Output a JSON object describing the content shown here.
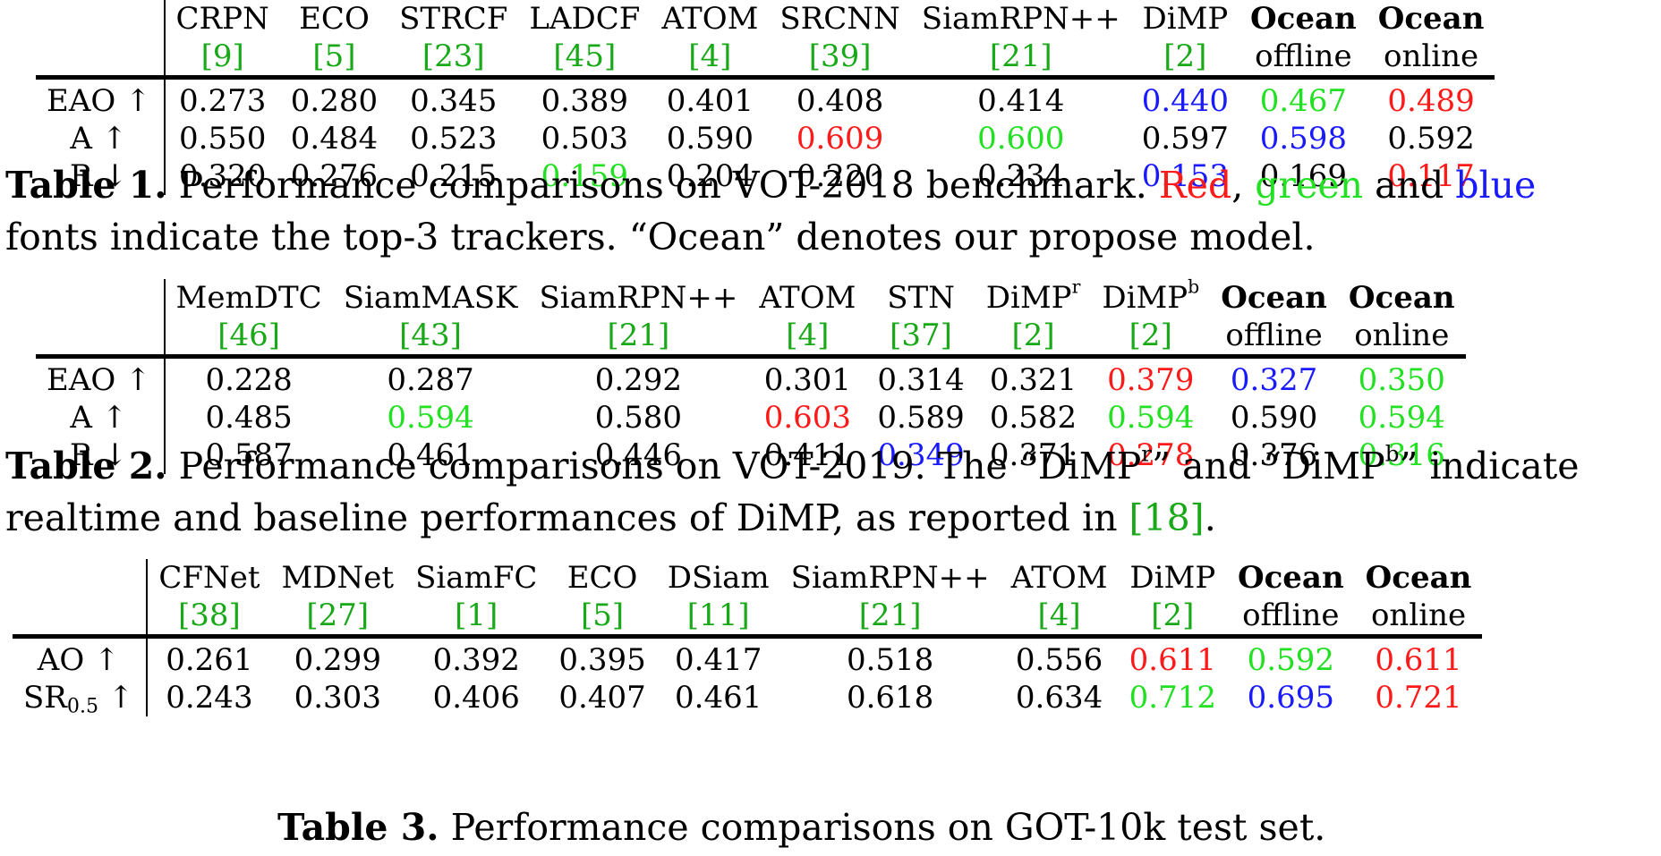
{
  "table1": {
    "columns": [
      {
        "name": "CRPN",
        "sub": "[9]",
        "bold": false
      },
      {
        "name": "ECO",
        "sub": "[5]",
        "bold": false
      },
      {
        "name": "STRCF",
        "sub": "[23]",
        "bold": false
      },
      {
        "name": "LADCF",
        "sub": "[45]",
        "bold": false
      },
      {
        "name": "ATOM",
        "sub": "[4]",
        "bold": false
      },
      {
        "name": "SRCNN",
        "sub": "[39]",
        "bold": false
      },
      {
        "name": "SiamRPN++",
        "sub": "[21]",
        "bold": false
      },
      {
        "name": "DiMP",
        "sub": "[2]",
        "bold": false
      },
      {
        "name": "Ocean",
        "sub": "offline",
        "bold": true
      },
      {
        "name": "Ocean",
        "sub": "online",
        "bold": true
      }
    ],
    "rows": [
      {
        "label": "EAO ↑",
        "values": [
          "0.273",
          "0.280",
          "0.345",
          "0.389",
          "0.401",
          "0.408",
          "0.414",
          "0.440",
          "0.467",
          "0.489"
        ],
        "styles": [
          "",
          "",
          "",
          "",
          "",
          "",
          "",
          "blue",
          "green",
          "red"
        ]
      },
      {
        "label": "A ↑",
        "values": [
          "0.550",
          "0.484",
          "0.523",
          "0.503",
          "0.590",
          "0.609",
          "0.600",
          "0.597",
          "0.598",
          "0.592"
        ],
        "styles": [
          "",
          "",
          "",
          "",
          "",
          "red",
          "green",
          "",
          "blue",
          ""
        ]
      },
      {
        "label": "R ↓",
        "values": [
          "0.320",
          "0.276",
          "0.215",
          "0.159",
          "0.204",
          "0.220",
          "0.234",
          "0.153",
          "0.169",
          "0.117"
        ],
        "styles": [
          "",
          "",
          "",
          "green",
          "",
          "",
          "",
          "blue",
          "",
          "red"
        ]
      }
    ],
    "caption": {
      "label": "Table 1.",
      "text1": " Performance comparisons on VOT-2018 benchmark. ",
      "red": "Red",
      "comma": ", ",
      "green": "green",
      "and": " and ",
      "blue": "blue",
      "line2": "fonts indicate the top-3 trackers. “Ocean” denotes our propose model."
    }
  },
  "table2": {
    "columns": [
      {
        "name": "MemDTC",
        "sup": "",
        "sub": "[46]",
        "bold": false
      },
      {
        "name": "SiamMASK",
        "sup": "",
        "sub": "[43]",
        "bold": false
      },
      {
        "name": "SiamRPN++",
        "sup": "",
        "sub": "[21]",
        "bold": false
      },
      {
        "name": "ATOM",
        "sup": "",
        "sub": "[4]",
        "bold": false
      },
      {
        "name": "STN",
        "sup": "",
        "sub": "[37]",
        "bold": false
      },
      {
        "name": "DiMP",
        "sup": "r",
        "sub": "[2]",
        "bold": false
      },
      {
        "name": "DiMP",
        "sup": "b",
        "sub": "[2]",
        "bold": false
      },
      {
        "name": "Ocean",
        "sup": "",
        "sub": "offline",
        "bold": true
      },
      {
        "name": "Ocean",
        "sup": "",
        "sub": "online",
        "bold": true
      }
    ],
    "rows": [
      {
        "label": "EAO ↑",
        "values": [
          "0.228",
          "0.287",
          "0.292",
          "0.301",
          "0.314",
          "0.321",
          "0.379",
          "0.327",
          "0.350"
        ],
        "styles": [
          "",
          "",
          "",
          "",
          "",
          "",
          "red",
          "blue",
          "green"
        ]
      },
      {
        "label": "A ↑",
        "values": [
          "0.485",
          "0.594",
          "0.580",
          "0.603",
          "0.589",
          "0.582",
          "0.594",
          "0.590",
          "0.594"
        ],
        "styles": [
          "",
          "green",
          "",
          "red",
          "",
          "",
          "green",
          "",
          "green"
        ]
      },
      {
        "label": "R ↓",
        "values": [
          "0.587",
          "0.461",
          "0.446",
          "0.411",
          "0.349",
          "0.371",
          "0.278",
          "0.376",
          "0.316"
        ],
        "styles": [
          "",
          "",
          "",
          "",
          "blue",
          "",
          "red",
          "",
          "green"
        ]
      }
    ],
    "caption": {
      "label": "Table 2.",
      "text1": " Performance comparisons on VOT-2019. The “DiMP",
      "sup1": "r",
      "text2": "” and “DiMP",
      "sup2": "b",
      "text3": "” indicate",
      "line2a": "realtime and baseline performances of DiMP, as reported in ",
      "cite": "[18]",
      "line2b": "."
    }
  },
  "table3": {
    "columns": [
      {
        "name": "CFNet",
        "sub": "[38]",
        "bold": false
      },
      {
        "name": "MDNet",
        "sub": "[27]",
        "bold": false
      },
      {
        "name": "SiamFC",
        "sub": "[1]",
        "bold": false
      },
      {
        "name": "ECO",
        "sub": "[5]",
        "bold": false
      },
      {
        "name": "DSiam",
        "sub": "[11]",
        "bold": false
      },
      {
        "name": "SiamRPN++",
        "sub": "[21]",
        "bold": false
      },
      {
        "name": "ATOM",
        "sub": "[4]",
        "bold": false
      },
      {
        "name": "DiMP",
        "sub": "[2]",
        "bold": false
      },
      {
        "name": "Ocean",
        "sub": "offline",
        "bold": true
      },
      {
        "name": "Ocean",
        "sub": "online",
        "bold": true
      }
    ],
    "rows": [
      {
        "label": "AO ↑",
        "labelSub": "",
        "values": [
          "0.261",
          "0.299",
          "0.392",
          "0.395",
          "0.417",
          "0.518",
          "0.556",
          "0.611",
          "0.592",
          "0.611"
        ],
        "styles": [
          "",
          "",
          "",
          "",
          "",
          "",
          "",
          "red",
          "green",
          "red"
        ]
      },
      {
        "label": "SR",
        "labelSub": "0.5",
        "labelTail": " ↑",
        "values": [
          "0.243",
          "0.303",
          "0.406",
          "0.407",
          "0.461",
          "0.618",
          "0.634",
          "0.712",
          "0.695",
          "0.721"
        ],
        "styles": [
          "",
          "",
          "",
          "",
          "",
          "",
          "",
          "green",
          "blue",
          "red"
        ]
      }
    ],
    "caption": {
      "label": "Table 3.",
      "text": " Performance comparisons on GOT-10k test set."
    }
  }
}
